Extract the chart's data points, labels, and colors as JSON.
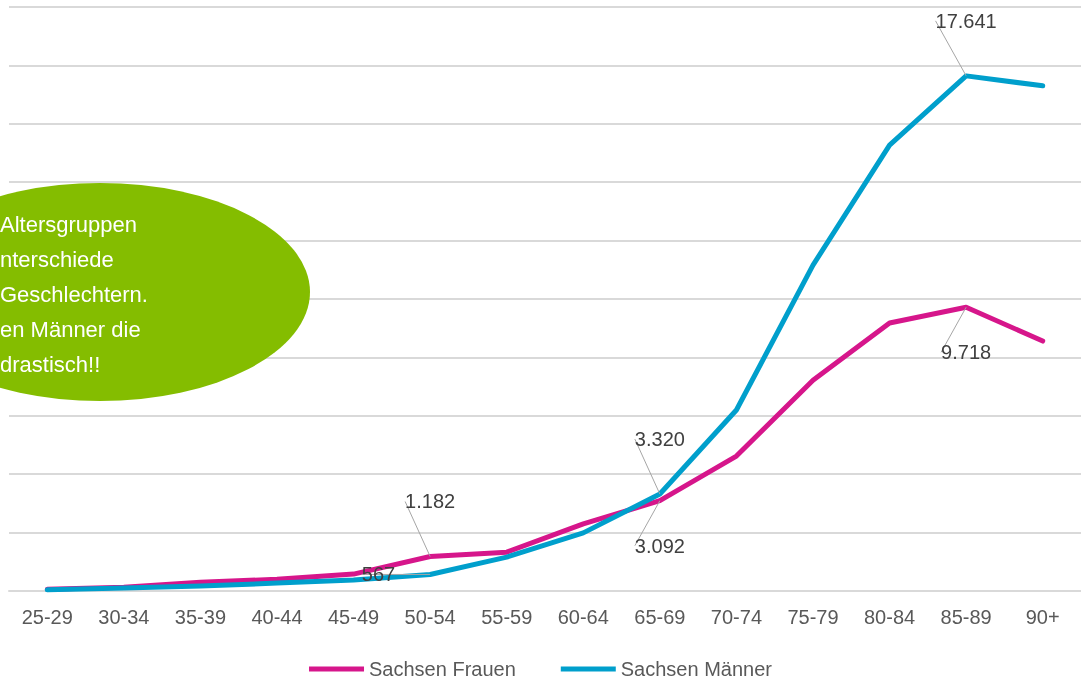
{
  "chart_data": {
    "type": "line",
    "categories": [
      "25-29",
      "30-34",
      "35-39",
      "40-44",
      "45-49",
      "50-54",
      "55-59",
      "60-64",
      "65-69",
      "70-74",
      "75-79",
      "80-84",
      "85-89",
      "90+"
    ],
    "series": [
      {
        "name": "Sachsen Frauen",
        "color": "#d6168b",
        "values": [
          60,
          130,
          300,
          400,
          580,
          1182,
          1330,
          2300,
          3092,
          4620,
          7220,
          9180,
          9718,
          8560
        ],
        "value_labels": [
          null,
          null,
          null,
          null,
          null,
          "1.182",
          null,
          null,
          "3.092",
          null,
          null,
          null,
          "9.718",
          null
        ]
      },
      {
        "name": "Sachsen Männer",
        "color": "#009fcc",
        "values": [
          40,
          100,
          170,
          270,
          380,
          567,
          1160,
          1990,
          3320,
          6200,
          11160,
          15270,
          17641,
          17300
        ],
        "value_labels": [
          null,
          null,
          null,
          null,
          null,
          "567",
          null,
          null,
          "3.320",
          null,
          null,
          null,
          "17.641",
          null
        ]
      }
    ],
    "ylim": [
      0,
      20000
    ],
    "yticks": [
      {
        "value": 0,
        "label": null
      },
      {
        "value": 2000,
        "label": null
      },
      {
        "value": 4000,
        "label": null
      },
      {
        "value": 6000,
        "label": null
      },
      {
        "value": 8000,
        "label": null
      },
      {
        "value": 10000,
        "label": null
      },
      {
        "value": 12000,
        "label": null
      },
      {
        "value": 14000,
        "label": null
      },
      {
        "value": 16000,
        "label": null
      },
      {
        "value": 18000,
        "label": null
      },
      {
        "value": 20000,
        "label": null
      }
    ],
    "tick_labels": "x",
    "grid": "y",
    "legend": "bottom",
    "marker": "none",
    "line_style": "solid",
    "annotations": [
      "Altersgruppen\nnterschiede\nGeschlechtern.\nen Männer die\ndrastisch!!"
    ]
  }
}
